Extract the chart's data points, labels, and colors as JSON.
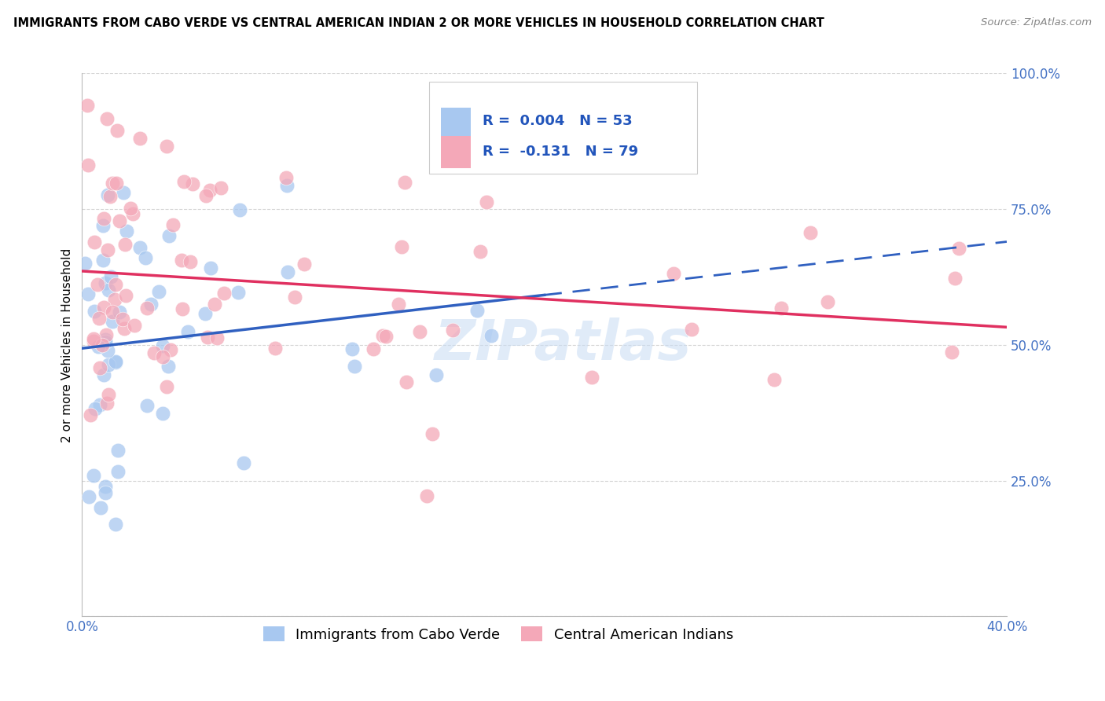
{
  "title": "IMMIGRANTS FROM CABO VERDE VS CENTRAL AMERICAN INDIAN 2 OR MORE VEHICLES IN HOUSEHOLD CORRELATION CHART",
  "source": "Source: ZipAtlas.com",
  "ylabel": "2 or more Vehicles in Household",
  "y_ticks": [
    0.0,
    25.0,
    50.0,
    75.0,
    100.0
  ],
  "y_tick_labels": [
    "",
    "25.0%",
    "50.0%",
    "75.0%",
    "100.0%"
  ],
  "xlim": [
    0.0,
    40.0
  ],
  "ylim": [
    0.0,
    100.0
  ],
  "cabo_verde_R": 0.004,
  "cabo_verde_N": 53,
  "central_american_R": -0.131,
  "central_american_N": 79,
  "color_blue": "#A8C8F0",
  "color_pink": "#F4A8B8",
  "color_blue_line": "#3060C0",
  "color_pink_line": "#E03060",
  "legend_label_blue": "Immigrants from Cabo Verde",
  "legend_label_pink": "Central American Indians",
  "watermark": "ZIPatlas",
  "grid_color": "#CCCCCC",
  "title_color": "#000000",
  "source_color": "#888888",
  "tick_color": "#4472C4",
  "ylabel_color": "#000000"
}
